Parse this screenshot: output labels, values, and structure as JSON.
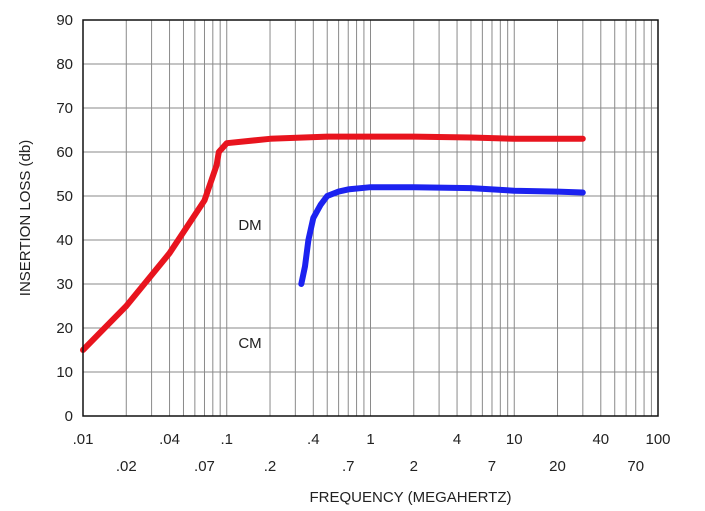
{
  "chart_data": {
    "type": "line",
    "xscale": "log",
    "xlim": [
      0.01,
      100
    ],
    "ylim": [
      0,
      90
    ],
    "grid": true,
    "xlabel": "FREQUENCY (MEGAHERTZ)",
    "ylabel": "INSERTION LOSS (db)",
    "y_ticks": [
      0,
      10,
      20,
      30,
      40,
      50,
      60,
      70,
      80,
      90
    ],
    "y_tick_labels": [
      "0",
      "10",
      "20",
      "30",
      "40",
      "50",
      "60",
      "70",
      "80",
      "90"
    ],
    "x_ticks_upper": [
      0.01,
      0.04,
      0.1,
      0.4,
      1,
      4,
      10,
      40,
      100
    ],
    "x_tick_labels_upper": [
      ".01",
      ".04",
      ".1",
      ".4",
      "1",
      "4",
      "10",
      "40",
      "100"
    ],
    "x_ticks_lower": [
      0.02,
      0.07,
      0.2,
      0.7,
      2,
      7,
      20,
      70
    ],
    "x_tick_labels_lower": [
      ".02",
      ".07",
      ".2",
      ".7",
      "2",
      "7",
      "20",
      "70"
    ],
    "series": [
      {
        "name": "DM",
        "color": "#e8141e",
        "x": [
          0.01,
          0.02,
          0.04,
          0.07,
          0.085,
          0.088,
          0.1,
          0.2,
          0.5,
          1,
          2,
          5,
          10,
          30
        ],
        "y": [
          15,
          25,
          37,
          49,
          57,
          60,
          62,
          63,
          63.5,
          63.5,
          63.5,
          63.3,
          63,
          63
        ]
      },
      {
        "name": "CM",
        "color": "#1c22f0",
        "x": [
          0.33,
          0.35,
          0.37,
          0.4,
          0.45,
          0.5,
          0.6,
          0.7,
          1,
          2,
          5,
          10,
          20,
          30
        ],
        "y": [
          30,
          34,
          40,
          45,
          48,
          50,
          51,
          51.5,
          52,
          52,
          51.8,
          51.2,
          51,
          50.8
        ]
      }
    ]
  }
}
